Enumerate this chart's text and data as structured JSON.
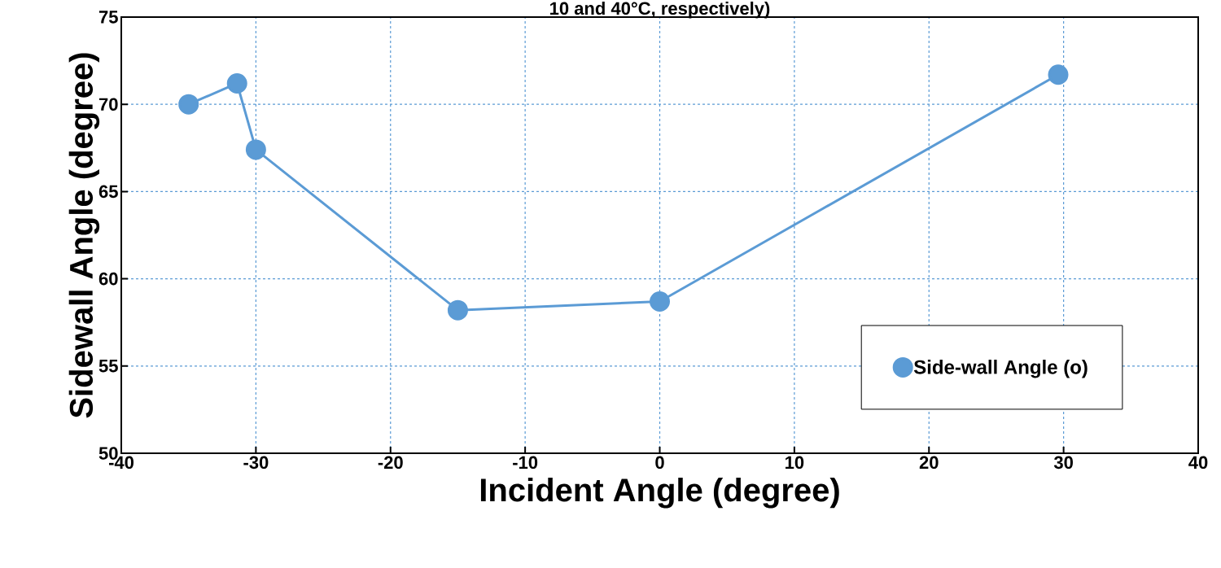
{
  "chart_data": {
    "type": "line",
    "title": "10 and 40°C, respectively)",
    "xlabel": "Incident Angle (degree)",
    "ylabel": "Sidewall Angle (degree)",
    "x": [
      -35,
      -31.4,
      -30,
      -15,
      0,
      29.6
    ],
    "series": [
      {
        "name": "Side-wall Angle (o)",
        "color": "#5b9bd5",
        "values": [
          70.0,
          71.2,
          67.4,
          58.2,
          58.7,
          71.7
        ]
      }
    ],
    "xlim": [
      -40,
      40
    ],
    "xticks": [
      -40,
      -30,
      -20,
      -10,
      0,
      10,
      20,
      30,
      40
    ],
    "ylim": [
      50,
      75
    ],
    "yticks": [
      50,
      55,
      60,
      65,
      70,
      75
    ],
    "grid": true,
    "legend": "bottom right",
    "marker": "circle",
    "line_style": "solid"
  }
}
